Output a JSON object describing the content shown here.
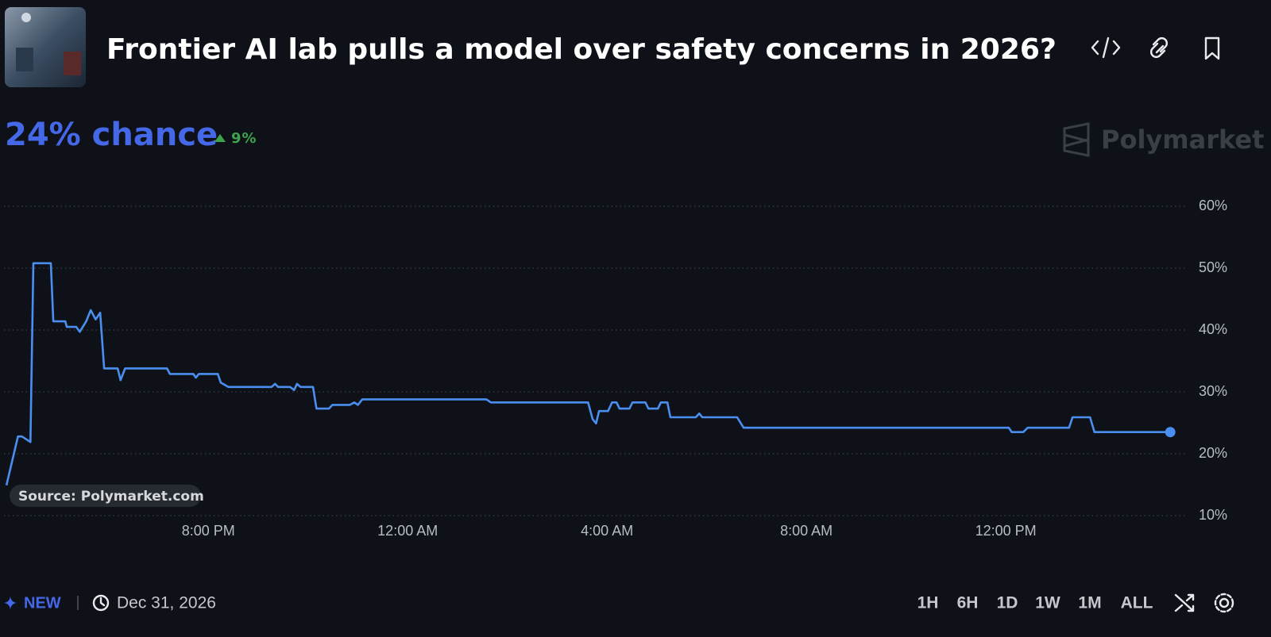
{
  "header": {
    "title": "Frontier AI lab pulls a model over safety concerns in 2026?",
    "chance": "24% chance",
    "change": "9%"
  },
  "watermark": "Polymarket",
  "source": "Source: Polymarket.com",
  "footer": {
    "badge": "NEW",
    "date": "Dec 31, 2026",
    "ranges": [
      "1H",
      "6H",
      "1D",
      "1W",
      "1M",
      "ALL"
    ]
  },
  "chart_data": {
    "type": "line",
    "color": "#4a8ff0",
    "x": [
      15.95,
      16.18,
      16.26,
      16.43,
      16.49,
      16.84,
      16.89,
      17.13,
      17.16,
      17.35,
      17.42,
      17.55,
      17.64,
      17.74,
      17.83,
      17.91,
      18.18,
      18.24,
      18.33,
      19.17,
      19.23,
      19.7,
      19.75,
      19.81,
      20.19,
      20.25,
      20.4,
      21.27,
      21.34,
      21.4,
      21.64,
      21.72,
      21.78,
      21.85,
      22.1,
      22.17,
      22.42,
      22.49,
      22.84,
      22.93,
      23.0,
      23.09,
      25.58,
      25.67,
      27.62,
      27.71,
      27.78,
      27.84,
      28.02,
      28.1,
      28.19,
      28.25,
      28.45,
      28.51,
      28.77,
      28.83,
      29.02,
      29.08,
      29.21,
      29.27,
      29.78,
      29.85,
      29.91,
      30.61,
      30.74,
      36.06,
      36.12,
      36.35,
      36.44,
      37.27,
      37.34,
      37.69,
      37.78,
      39.3
    ],
    "values": [
      14.9,
      22.8,
      22.8,
      21.9,
      50.8,
      50.8,
      41.4,
      41.4,
      40.5,
      40.5,
      39.7,
      41.4,
      43.2,
      41.7,
      42.8,
      33.8,
      33.8,
      31.9,
      33.8,
      33.8,
      32.9,
      32.9,
      32.3,
      32.9,
      32.9,
      31.5,
      30.8,
      30.8,
      31.3,
      30.8,
      30.8,
      30.3,
      31.3,
      30.8,
      30.8,
      27.3,
      27.3,
      27.9,
      27.9,
      28.3,
      27.9,
      28.8,
      28.8,
      28.3,
      28.3,
      25.6,
      24.9,
      26.9,
      26.9,
      28.3,
      28.3,
      27.3,
      27.3,
      28.3,
      28.3,
      27.3,
      27.3,
      28.3,
      28.3,
      25.9,
      25.9,
      26.5,
      25.9,
      25.9,
      24.2,
      24.2,
      23.5,
      23.5,
      24.2,
      24.2,
      25.9,
      25.9,
      23.5,
      23.5
    ],
    "xlim": [
      15.9,
      39.6
    ],
    "xticks": [
      {
        "value": 20,
        "label": "8:00 PM"
      },
      {
        "value": 24,
        "label": "12:00 AM"
      },
      {
        "value": 28,
        "label": "4:00 AM"
      },
      {
        "value": 32,
        "label": "8:00 AM"
      },
      {
        "value": 36,
        "label": "12:00 PM"
      }
    ],
    "ylim": [
      10,
      60
    ],
    "yticks": [
      {
        "value": 10,
        "label": "10%"
      },
      {
        "value": 20,
        "label": "20%"
      },
      {
        "value": 30,
        "label": "30%"
      },
      {
        "value": 40,
        "label": "40%"
      },
      {
        "value": 50,
        "label": "50%"
      },
      {
        "value": 60,
        "label": "60%"
      }
    ],
    "grid": true
  }
}
